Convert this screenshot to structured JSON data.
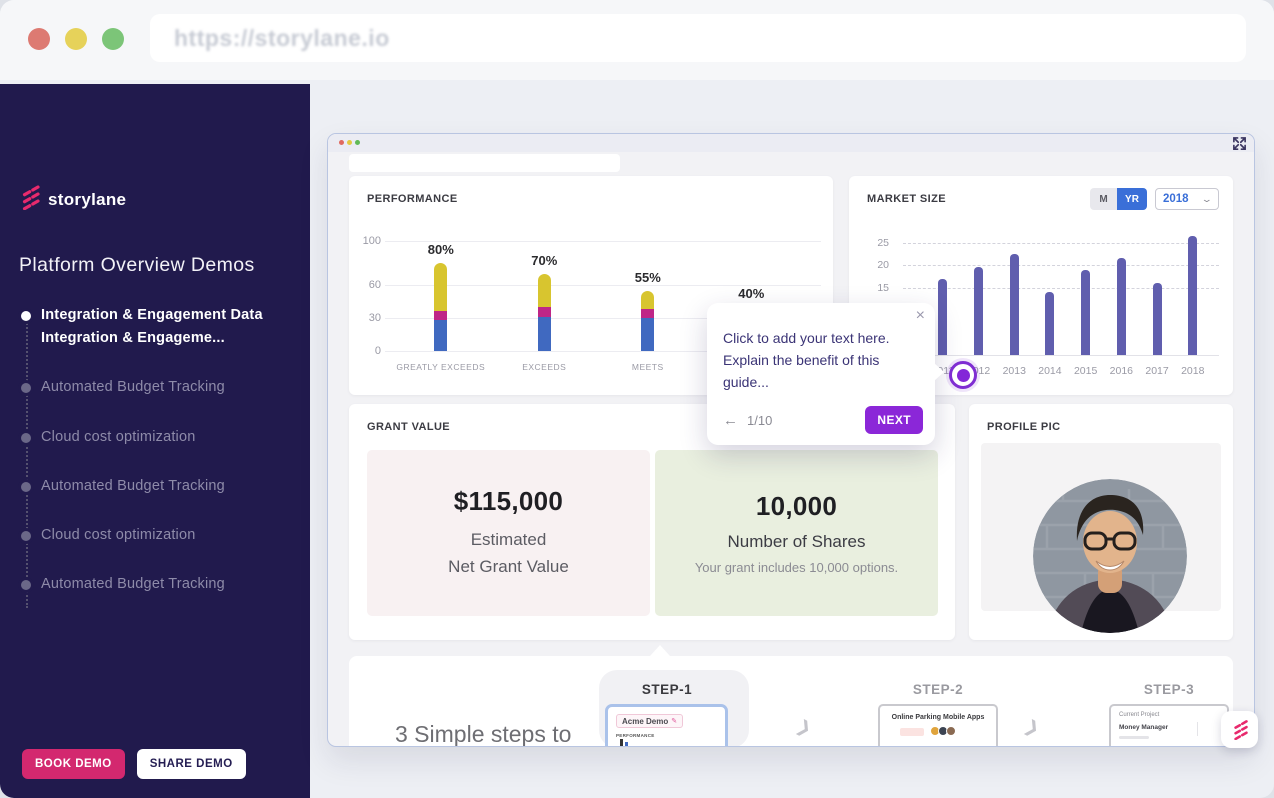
{
  "browser": {
    "url": "https://storylane.io"
  },
  "sidebar": {
    "logo_text": "storylane",
    "title": "Platform Overview Demos",
    "items": [
      {
        "line1": "Integration & Engagement Data",
        "line2": "Integration & Engageme...",
        "active": true
      },
      {
        "line1": "Automated Budget Tracking",
        "active": false
      },
      {
        "line1": "Cloud cost optimization",
        "active": false
      },
      {
        "line1": "Automated Budget Tracking",
        "active": false
      },
      {
        "line1": "Cloud cost optimization",
        "active": false
      },
      {
        "line1": "Automated Budget Tracking",
        "active": false
      }
    ],
    "buttons": {
      "book": "BOOK DEMO",
      "share": "SHARE DEMO"
    }
  },
  "demo": {
    "performance_card": {
      "title": "PERFORMANCE"
    },
    "market_card": {
      "title": "MARKET SIZE",
      "toggle_month": "M",
      "toggle_year": "YR",
      "year_select": "2018",
      "chevron": "⌄"
    },
    "grant_card": {
      "title": "GRANT VALUE",
      "net_value": {
        "value": "$115,000",
        "line1": "Estimated",
        "line2": "Net Grant Value"
      },
      "shares": {
        "value": "10,000",
        "label": "Number of Shares",
        "sub": "Your grant includes 10,000 options."
      }
    },
    "profile_card": {
      "title": "PROFILE PIC"
    },
    "steps": {
      "intro": "3 Simple steps to",
      "arrow_icon": "❯",
      "items": [
        {
          "label": "STEP-1",
          "thumb_title": "Acme Demo",
          "thumb_sub": "PERFORMANCE"
        },
        {
          "label": "STEP-2",
          "thumb_title": "Online Parking Mobile Apps"
        },
        {
          "label": "STEP-3",
          "thumb_title": "Current Project",
          "thumb_sub": "Money Manager"
        }
      ]
    }
  },
  "tooltip": {
    "text": "Click to add your text here. Explain the benefit of this guide...",
    "back_icon": "←",
    "progress": "1/10",
    "next_label": "NEXT",
    "close_icon": "×"
  },
  "chart_data": [
    {
      "type": "bar",
      "title": "PERFORMANCE",
      "stacked": true,
      "categories": [
        "GREATLY EXCEEDS",
        "EXCEEDS",
        "MEETS",
        ""
      ],
      "series": [
        {
          "name": "blue-segment",
          "color": "#4069c0",
          "values": [
            28,
            31,
            30,
            20
          ]
        },
        {
          "name": "pink-segment",
          "color": "#bf2687",
          "values": [
            8,
            9,
            8,
            6
          ]
        },
        {
          "name": "yellow-segment",
          "color": "#d8c52f",
          "values": [
            44,
            30,
            17,
            14
          ]
        }
      ],
      "totals": [
        80,
        70,
        55,
        40
      ],
      "bar_labels": [
        "80%",
        "70%",
        "55%",
        "40%"
      ],
      "yticks": [
        0,
        30,
        60,
        100
      ],
      "ylim": [
        0,
        110
      ],
      "grid": true,
      "legend": false
    },
    {
      "type": "bar",
      "title": "MARKET SIZE",
      "categories": [
        "2011",
        "2012",
        "2013",
        "2014",
        "2015",
        "2016",
        "2017",
        "2018"
      ],
      "values": [
        17,
        19.5,
        22.5,
        14,
        19,
        21.5,
        16,
        26.5
      ],
      "yticks": [
        15,
        20,
        25
      ],
      "ylim": [
        0,
        28
      ],
      "bar_color": "#605eae",
      "grid": "dashed",
      "legend": false,
      "controls_selected_period": "YR",
      "controls_selected_year": "2018"
    }
  ],
  "colors": {
    "sidebar_bg": "#211a4d",
    "accent_pink": "#d3286f",
    "guide_purple": "#8b27d8",
    "beacon_purple": "#7f2dd2",
    "toggle_blue": "#3a6fd8"
  }
}
